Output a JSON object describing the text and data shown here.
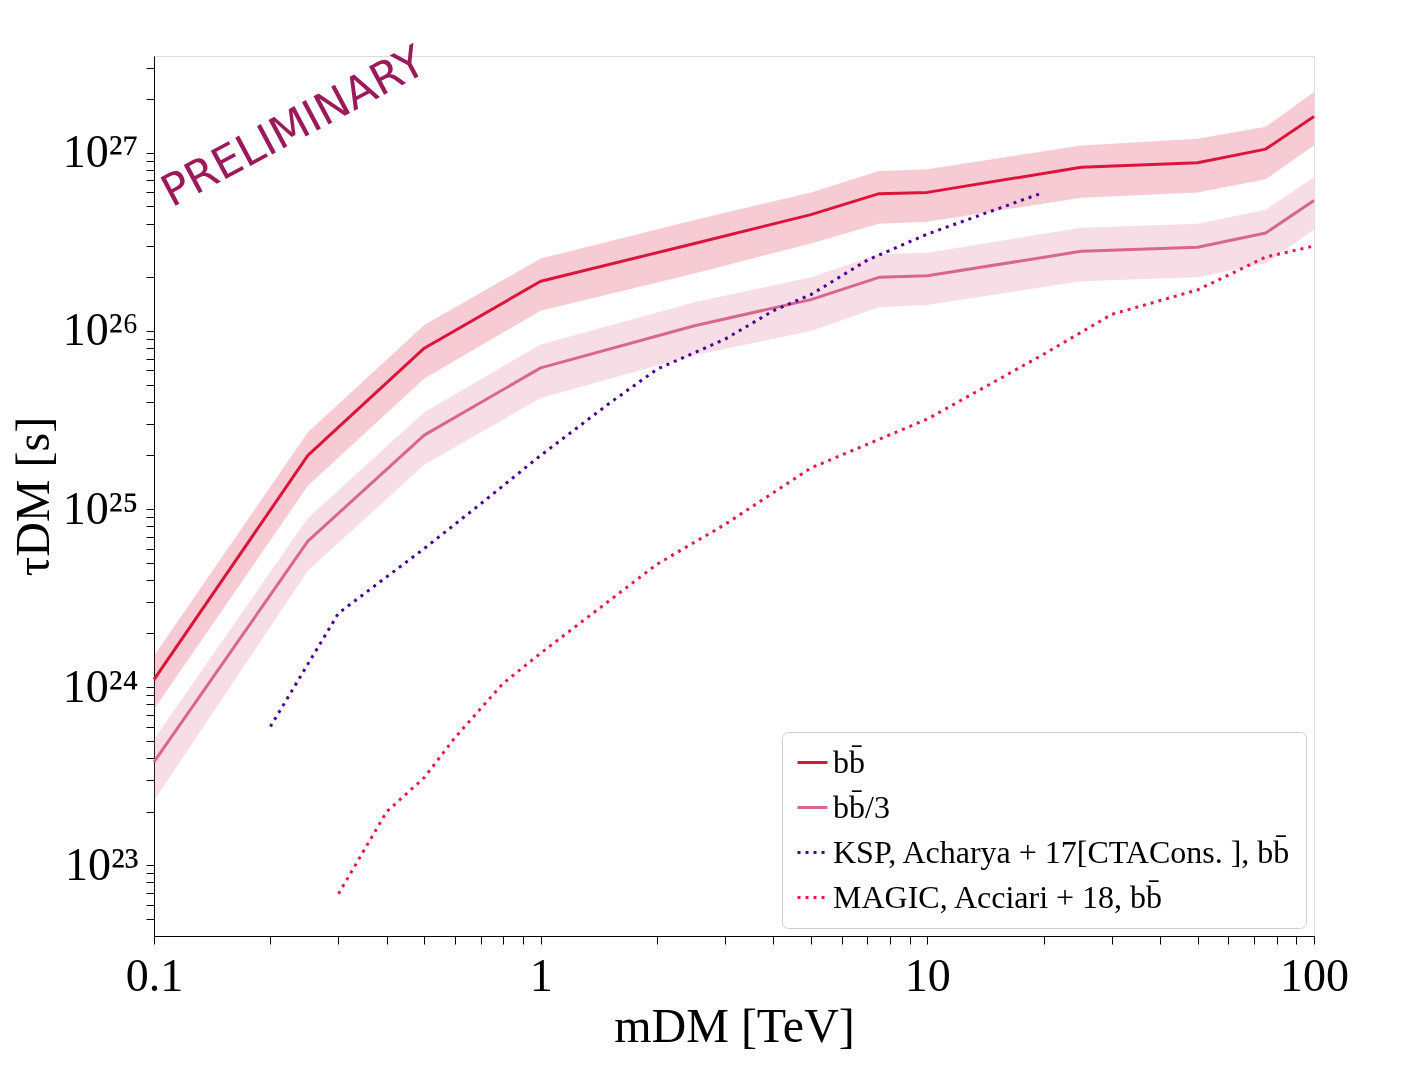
{
  "chart_data": {
    "type": "line",
    "xlabel": "mDM [TeV]",
    "ylabel": "τDM [s]",
    "log": "xy",
    "grid": false,
    "legend": "bottom right",
    "marker": "none",
    "annotations": [
      "PRELIMINARY"
    ],
    "xlim": [
      0.1,
      100
    ],
    "ylim": [
      4e+22,
      3.5e+27
    ],
    "xticks": [
      0.1,
      {
        "value": 0.2,
        "label": null
      },
      {
        "value": 0.3,
        "label": null
      },
      {
        "value": 0.4,
        "label": null
      },
      {
        "value": 0.5,
        "label": null
      },
      {
        "value": 0.6,
        "label": null
      },
      {
        "value": 0.7,
        "label": null
      },
      {
        "value": 0.8,
        "label": null
      },
      {
        "value": 0.9,
        "label": null
      },
      1,
      {
        "value": 2,
        "label": null
      },
      {
        "value": 3,
        "label": null
      },
      {
        "value": 4,
        "label": null
      },
      {
        "value": 5,
        "label": null
      },
      {
        "value": 6,
        "label": null
      },
      {
        "value": 7,
        "label": null
      },
      {
        "value": 8,
        "label": null
      },
      {
        "value": 9,
        "label": null
      },
      10,
      {
        "value": 20,
        "label": null
      },
      {
        "value": 30,
        "label": null
      },
      {
        "value": 40,
        "label": null
      },
      {
        "value": 50,
        "label": null
      },
      {
        "value": 60,
        "label": null
      },
      {
        "value": 70,
        "label": null
      },
      {
        "value": 80,
        "label": null
      },
      {
        "value": 90,
        "label": null
      },
      100
    ],
    "yticks": [
      {
        "value": 5e+22,
        "label": null
      },
      {
        "value": 6e+22,
        "label": null
      },
      {
        "value": 7e+22,
        "label": null
      },
      {
        "value": 8e+22,
        "label": null
      },
      {
        "value": 9e+22,
        "label": null
      },
      {
        "value": 1e+23,
        "label": "10²³"
      },
      {
        "value": 2e+23,
        "label": null
      },
      {
        "value": 3e+23,
        "label": null
      },
      {
        "value": 4e+23,
        "label": null
      },
      {
        "value": 5e+23,
        "label": null
      },
      {
        "value": 6e+23,
        "label": null
      },
      {
        "value": 7e+23,
        "label": null
      },
      {
        "value": 8e+23,
        "label": null
      },
      {
        "value": 9e+23,
        "label": null
      },
      {
        "value": 1e+24,
        "label": "10²⁴"
      },
      {
        "value": 2e+24,
        "label": null
      },
      {
        "value": 3e+24,
        "label": null
      },
      {
        "value": 4e+24,
        "label": null
      },
      {
        "value": 5e+24,
        "label": null
      },
      {
        "value": 6e+24,
        "label": null
      },
      {
        "value": 7e+24,
        "label": null
      },
      {
        "value": 8e+24,
        "label": null
      },
      {
        "value": 9e+24,
        "label": null
      },
      {
        "value": 1e+25,
        "label": "10²⁵"
      },
      {
        "value": 2e+25,
        "label": null
      },
      {
        "value": 3e+25,
        "label": null
      },
      {
        "value": 4e+25,
        "label": null
      },
      {
        "value": 5e+25,
        "label": null
      },
      {
        "value": 6e+25,
        "label": null
      },
      {
        "value": 7e+25,
        "label": null
      },
      {
        "value": 8e+25,
        "label": null
      },
      {
        "value": 9e+25,
        "label": null
      },
      {
        "value": 1e+26,
        "label": "10²⁶"
      },
      {
        "value": 2e+26,
        "label": null
      },
      {
        "value": 3e+26,
        "label": null
      },
      {
        "value": 4e+26,
        "label": null
      },
      {
        "value": 5e+26,
        "label": null
      },
      {
        "value": 6e+26,
        "label": null
      },
      {
        "value": 7e+26,
        "label": null
      },
      {
        "value": 8e+26,
        "label": null
      },
      {
        "value": 9e+26,
        "label": null
      },
      {
        "value": 1e+27,
        "label": "10²⁷"
      },
      {
        "value": 2e+27,
        "label": null
      },
      {
        "value": 3e+27,
        "label": null
      }
    ],
    "series": [
      {
        "name": "bb̄",
        "color": "#dc143c",
        "line_style": "solid",
        "x": [
          0.1,
          0.25,
          0.5,
          1,
          2.5,
          5,
          7.5,
          10,
          25,
          50,
          75,
          100
        ],
        "values": [
          1.1e+24,
          2e+25,
          8e+25,
          1.9e+26,
          3.1e+26,
          4.5e+26,
          5.9e+26,
          6e+26,
          8.3e+26,
          8.8e+26,
          1.05e+27,
          1.6e+27
        ],
        "upper": [
          1.5e+24,
          2.7e+25,
          1.08e+26,
          2.55e+26,
          4.2e+26,
          6e+26,
          7.9e+26,
          8.1e+26,
          1.1e+27,
          1.2e+27,
          1.4e+27,
          2.2e+27
        ],
        "lower": [
          7.5e+23,
          1.35e+25,
          5.4e+25,
          1.3e+26,
          2.1e+26,
          3.1e+26,
          4e+26,
          4.1e+26,
          5.6e+26,
          6e+26,
          7.1e+26,
          1.1e+27
        ]
      },
      {
        "name": "bb̄/3",
        "color": "#d9668e",
        "line_style": "solid",
        "x": [
          0.1,
          0.25,
          0.5,
          1,
          2.5,
          5,
          7.5,
          10,
          25,
          50,
          75,
          100
        ],
        "values": [
          3.8e+23,
          6.6e+24,
          2.6e+25,
          6.2e+25,
          1.07e+26,
          1.5e+26,
          2e+26,
          2.04e+26,
          2.8e+26,
          2.95e+26,
          3.55e+26,
          5.4e+26
        ],
        "upper": [
          5.1e+23,
          8.9e+24,
          3.5e+25,
          8.4e+25,
          1.45e+26,
          2e+26,
          2.7e+26,
          2.75e+26,
          3.8e+26,
          4e+26,
          4.8e+26,
          7.3e+26
        ],
        "lower": [
          2.3e+23,
          4.5e+24,
          1.77e+25,
          4.2e+25,
          7.3e+25,
          1e+26,
          1.36e+26,
          1.4e+26,
          1.9e+26,
          2e+26,
          2.4e+26,
          3.7e+26
        ]
      },
      {
        "name": "KSP, Acharya + 17[CTACons. ], bb̄",
        "color": "#4b0096",
        "line_style": "dotted",
        "x": [
          0.2,
          0.3,
          0.5,
          0.7,
          1,
          1.5,
          2,
          3,
          4,
          5,
          7,
          10,
          15,
          20
        ],
        "values": [
          6e+23,
          2.6e+24,
          6e+24,
          1.07e+25,
          2e+25,
          3.9e+25,
          6.1e+25,
          9e+25,
          1.3e+26,
          1.6e+26,
          2.5e+26,
          3.5e+26,
          4.8e+26,
          6e+26
        ]
      },
      {
        "name": "MAGIC, Acciari + 18, bb̄",
        "color": "#e8194a",
        "line_style": "dotted",
        "x": [
          0.3,
          0.4,
          0.5,
          0.6,
          0.8,
          1,
          2,
          3,
          5,
          10,
          20,
          30,
          50,
          75,
          100
        ],
        "values": [
          6.9e+22,
          2e+23,
          3.1e+23,
          5.2e+23,
          1.05e+24,
          1.55e+24,
          4.9e+24,
          8.2e+24,
          1.7e+25,
          3.2e+25,
          7.4e+25,
          1.24e+26,
          1.7e+26,
          2.6e+26,
          3e+26
        ]
      }
    ]
  }
}
